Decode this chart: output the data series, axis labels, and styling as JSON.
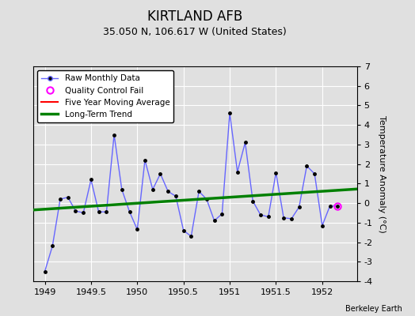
{
  "title": "KIRTLAND AFB",
  "subtitle": "35.050 N, 106.617 W (United States)",
  "attribution": "Berkeley Earth",
  "ylabel": "Temperature Anomaly (°C)",
  "xlim": [
    1948.875,
    1952.375
  ],
  "ylim": [
    -4,
    7
  ],
  "yticks": [
    -4,
    -3,
    -2,
    -1,
    0,
    1,
    2,
    3,
    4,
    5,
    6,
    7
  ],
  "bg_color": "#e0e0e0",
  "plot_bg_color": "#e0e0e0",
  "raw_x": [
    1949.0,
    1949.083,
    1949.167,
    1949.25,
    1949.333,
    1949.417,
    1949.5,
    1949.583,
    1949.667,
    1949.75,
    1949.833,
    1949.917,
    1950.0,
    1950.083,
    1950.167,
    1950.25,
    1950.333,
    1950.417,
    1950.5,
    1950.583,
    1950.667,
    1950.75,
    1950.833,
    1950.917,
    1951.0,
    1951.083,
    1951.167,
    1951.25,
    1951.333,
    1951.417,
    1951.5,
    1951.583,
    1951.667,
    1951.75,
    1951.833,
    1951.917,
    1952.0,
    1952.083,
    1952.167
  ],
  "raw_y": [
    -3.5,
    -2.2,
    0.2,
    0.3,
    -0.4,
    -0.5,
    1.2,
    -0.45,
    -0.45,
    3.5,
    0.7,
    -0.45,
    -1.35,
    2.2,
    0.7,
    1.5,
    0.6,
    0.35,
    -1.4,
    -1.7,
    0.6,
    0.2,
    -0.9,
    -0.55,
    4.6,
    1.6,
    3.1,
    0.1,
    -0.6,
    -0.7,
    1.55,
    -0.75,
    -0.8,
    -0.2,
    1.9,
    1.5,
    -1.15,
    -0.15,
    -0.15
  ],
  "qc_fail_x": [
    1952.167
  ],
  "qc_fail_y": [
    -0.15
  ],
  "trend_x": [
    1948.875,
    1952.375
  ],
  "trend_y": [
    -0.35,
    0.72
  ],
  "raw_line_color": "#6666ff",
  "dot_color": "black",
  "qc_color": "magenta",
  "trend_color": "green",
  "moving_avg_color": "red",
  "grid_color": "white",
  "xticks": [
    1949,
    1949.5,
    1950,
    1950.5,
    1951,
    1951.5,
    1952
  ],
  "xtick_labels": [
    "1949",
    "1949.5",
    "1950",
    "1950.5",
    "1951",
    "1951.5",
    "1952"
  ],
  "title_fontsize": 12,
  "subtitle_fontsize": 9,
  "tick_fontsize": 8,
  "ylabel_fontsize": 8
}
